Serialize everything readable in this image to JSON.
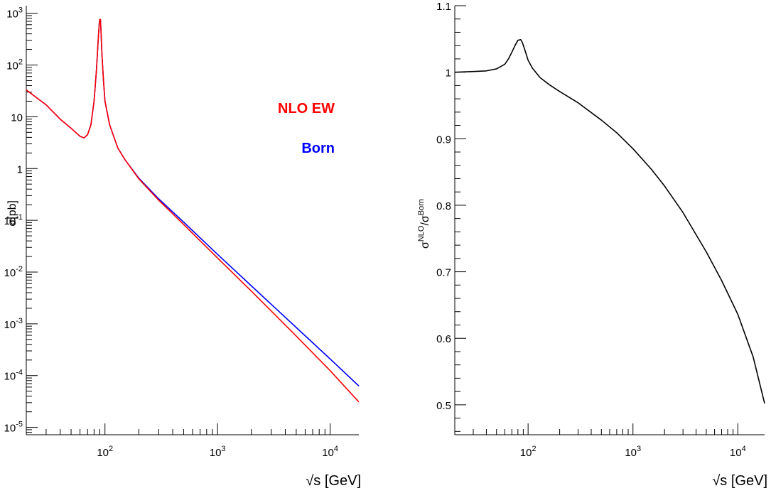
{
  "colors": {
    "nlo": "#ff0000",
    "born": "#0000ff",
    "ratio": "#000000",
    "axis": "#000000"
  },
  "chart_data": [
    {
      "type": "line",
      "xscale": "log",
      "yscale": "log",
      "xlim": [
        20,
        18000
      ],
      "ylim": [
        7.2e-06,
        1400
      ],
      "xlabel": "√s [GeV]",
      "ylabel": "σ[pb]",
      "xtick_labels": [
        {
          "value": 100,
          "base": "10",
          "exp": "2"
        },
        {
          "value": 1000,
          "base": "10",
          "exp": "3"
        },
        {
          "value": 10000,
          "base": "10",
          "exp": "4"
        }
      ],
      "ytick_labels": [
        {
          "value": 1e-05,
          "base": "10",
          "exp": "-5"
        },
        {
          "value": 0.0001,
          "base": "10",
          "exp": "-4"
        },
        {
          "value": 0.001,
          "base": "10",
          "exp": "-3"
        },
        {
          "value": 0.01,
          "base": "10",
          "exp": "-2"
        },
        {
          "value": 0.1,
          "base": "10",
          "exp": "-1"
        },
        {
          "value": 1,
          "base": "1",
          "exp": ""
        },
        {
          "value": 10,
          "base": "10",
          "exp": ""
        },
        {
          "value": 100,
          "base": "10",
          "exp": "2"
        },
        {
          "value": 1000,
          "base": "10",
          "exp": "3"
        }
      ],
      "legend": [
        {
          "label": "NLO EW",
          "color": "#ff0000"
        },
        {
          "label": "Born",
          "color": "#0000ff"
        }
      ],
      "legend_position": "upper-right",
      "series": [
        {
          "name": "Born",
          "color": "#0000ff",
          "x": [
            20,
            30,
            40,
            50,
            60,
            65,
            70,
            75,
            80,
            84,
            87,
            89,
            90,
            91.2,
            92,
            94,
            97,
            100,
            110,
            130,
            150,
            200,
            300,
            500,
            1000,
            2000,
            5000,
            10000,
            18000
          ],
          "y": [
            33,
            17,
            9,
            6,
            4.2,
            3.9,
            4.5,
            7,
            20,
            80,
            300,
            650,
            760,
            760,
            500,
            160,
            50,
            20,
            7,
            2.5,
            1.5,
            0.65,
            0.26,
            0.092,
            0.022,
            0.0054,
            0.00085,
            0.00021,
            6.3e-05
          ]
        },
        {
          "name": "NLO EW",
          "color": "#ff0000",
          "x": [
            20,
            30,
            40,
            50,
            60,
            65,
            70,
            75,
            80,
            84,
            87,
            89,
            90,
            91.2,
            92,
            94,
            97,
            100,
            110,
            130,
            150,
            200,
            300,
            500,
            1000,
            2000,
            5000,
            10000,
            18000
          ],
          "y": [
            33,
            17,
            9,
            6,
            4.2,
            3.9,
            4.5,
            7,
            20,
            80,
            300,
            650,
            760,
            760,
            500,
            160,
            50,
            20,
            7,
            2.5,
            1.5,
            0.63,
            0.245,
            0.083,
            0.0187,
            0.00427,
            0.00058,
            0.000125,
            3.1e-05
          ]
        }
      ]
    },
    {
      "type": "line",
      "xscale": "log",
      "yscale": "linear",
      "xlim": [
        20,
        18000
      ],
      "ylim": [
        0.455,
        1.1
      ],
      "xlabel": "√s [GeV]",
      "ylabel": "σ^NLO/σ^Born",
      "xtick_labels": [
        {
          "value": 100,
          "base": "10",
          "exp": "2"
        },
        {
          "value": 1000,
          "base": "10",
          "exp": "3"
        },
        {
          "value": 10000,
          "base": "10",
          "exp": "4"
        }
      ],
      "ytick_labels": [
        {
          "value": 0.5,
          "label": "0.5"
        },
        {
          "value": 0.6,
          "label": "0.6"
        },
        {
          "value": 0.7,
          "label": "0.7"
        },
        {
          "value": 0.8,
          "label": "0.8"
        },
        {
          "value": 0.9,
          "label": "0.9"
        },
        {
          "value": 1.0,
          "label": "1"
        },
        {
          "value": 1.1,
          "label": "1.1"
        }
      ],
      "series": [
        {
          "color": "#000000",
          "x": [
            20,
            30,
            40,
            50,
            60,
            65,
            70,
            75,
            80,
            85,
            88,
            92,
            96,
            100,
            110,
            130,
            160,
            200,
            300,
            500,
            700,
            1000,
            1500,
            2000,
            3000,
            5000,
            7000,
            10000,
            14000,
            18000
          ],
          "y": [
            1.0,
            1.001,
            1.002,
            1.005,
            1.012,
            1.02,
            1.03,
            1.04,
            1.048,
            1.049,
            1.045,
            1.036,
            1.027,
            1.018,
            1.006,
            0.992,
            0.981,
            0.971,
            0.954,
            0.928,
            0.909,
            0.885,
            0.854,
            0.829,
            0.789,
            0.73,
            0.687,
            0.636,
            0.572,
            0.502
          ]
        }
      ]
    }
  ]
}
